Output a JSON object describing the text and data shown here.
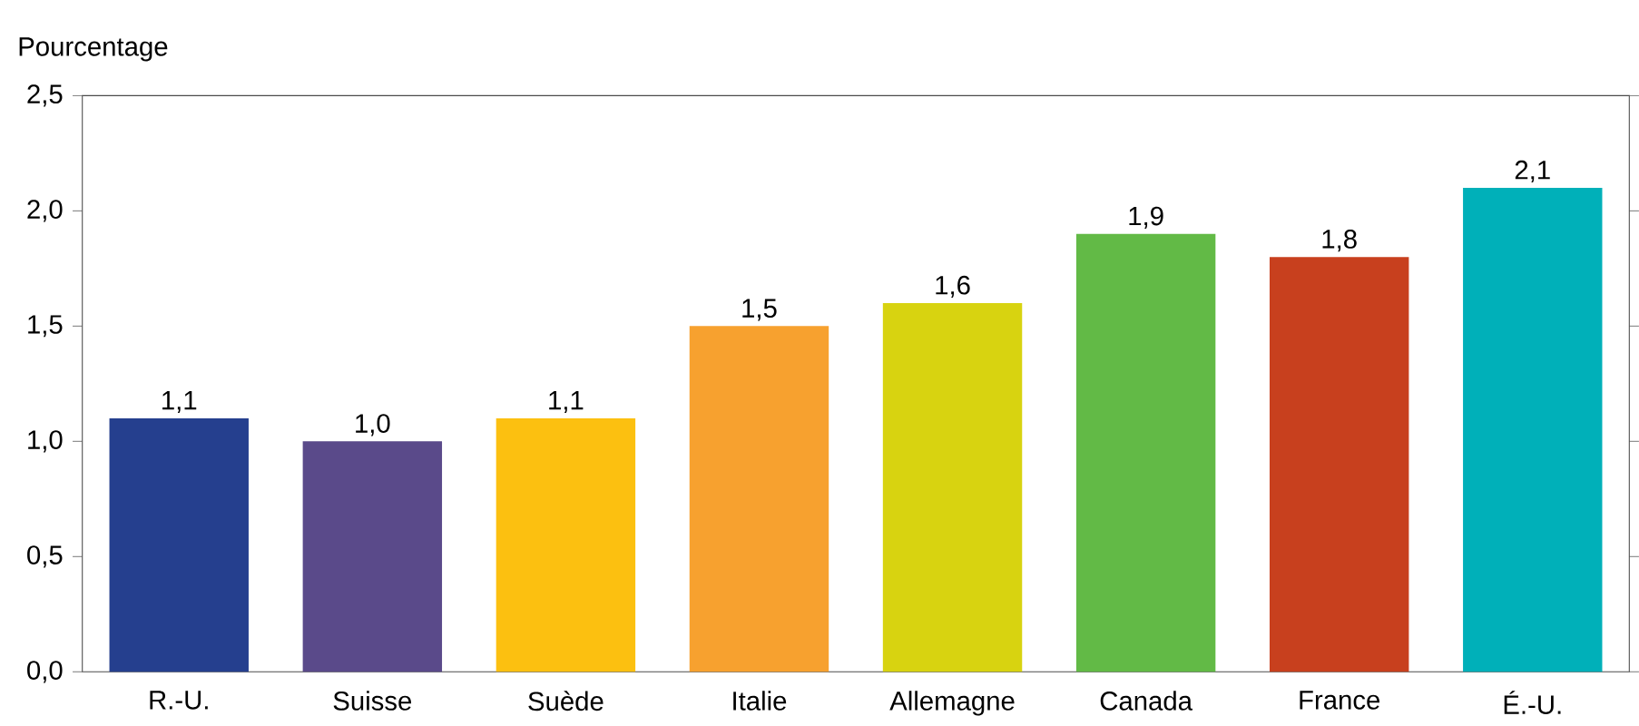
{
  "chart_data": {
    "type": "bar",
    "ylabel": "Pourcentage",
    "categories": [
      "R.-U.",
      "Suisse",
      "Suède",
      "Italie",
      "Allemagne",
      "Canada",
      "France",
      "É.-U."
    ],
    "values": [
      1.1,
      1.0,
      1.1,
      1.5,
      1.6,
      1.9,
      1.8,
      2.1
    ],
    "value_labels": [
      "1,1",
      "1,0",
      "1,1",
      "1,5",
      "1,6",
      "1,9",
      "1,8",
      "2,1"
    ],
    "colors": [
      "#253f8e",
      "#5a4a8a",
      "#fcc010",
      "#f7a12f",
      "#d8d310",
      "#62ba46",
      "#c8401e",
      "#00b0b9"
    ],
    "ylim": [
      0,
      2.5
    ],
    "yticks": [
      {
        "value": 0,
        "label": "0,0"
      },
      {
        "value": 0.5,
        "label": "0,5"
      },
      {
        "value": 1.0,
        "label": "1,0"
      },
      {
        "value": 1.5,
        "label": "1,5"
      },
      {
        "value": 2.0,
        "label": "2,0"
      },
      {
        "value": 2.5,
        "label": "2,5"
      }
    ],
    "grid": false
  }
}
